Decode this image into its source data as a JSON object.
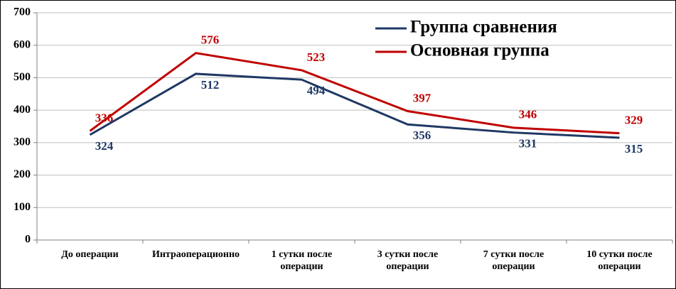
{
  "chart_data": {
    "type": "line",
    "categories": [
      "До операции",
      "Интраоперационно",
      "1 сутки после операции",
      "3 сутки после операции",
      "7 сутки после операции",
      "10 сутки после операции"
    ],
    "series": [
      {
        "name": "Группа сравнения",
        "color": "#1f3864",
        "values": [
          324,
          512,
          494,
          356,
          331,
          315
        ]
      },
      {
        "name": "Основная группа",
        "color": "#c00000",
        "values": [
          336,
          576,
          523,
          397,
          346,
          329
        ]
      }
    ],
    "ylim": [
      0,
      700
    ],
    "yticks": [
      0,
      100,
      200,
      300,
      400,
      500,
      600,
      700
    ],
    "grid": true,
    "legend": "top-right"
  }
}
